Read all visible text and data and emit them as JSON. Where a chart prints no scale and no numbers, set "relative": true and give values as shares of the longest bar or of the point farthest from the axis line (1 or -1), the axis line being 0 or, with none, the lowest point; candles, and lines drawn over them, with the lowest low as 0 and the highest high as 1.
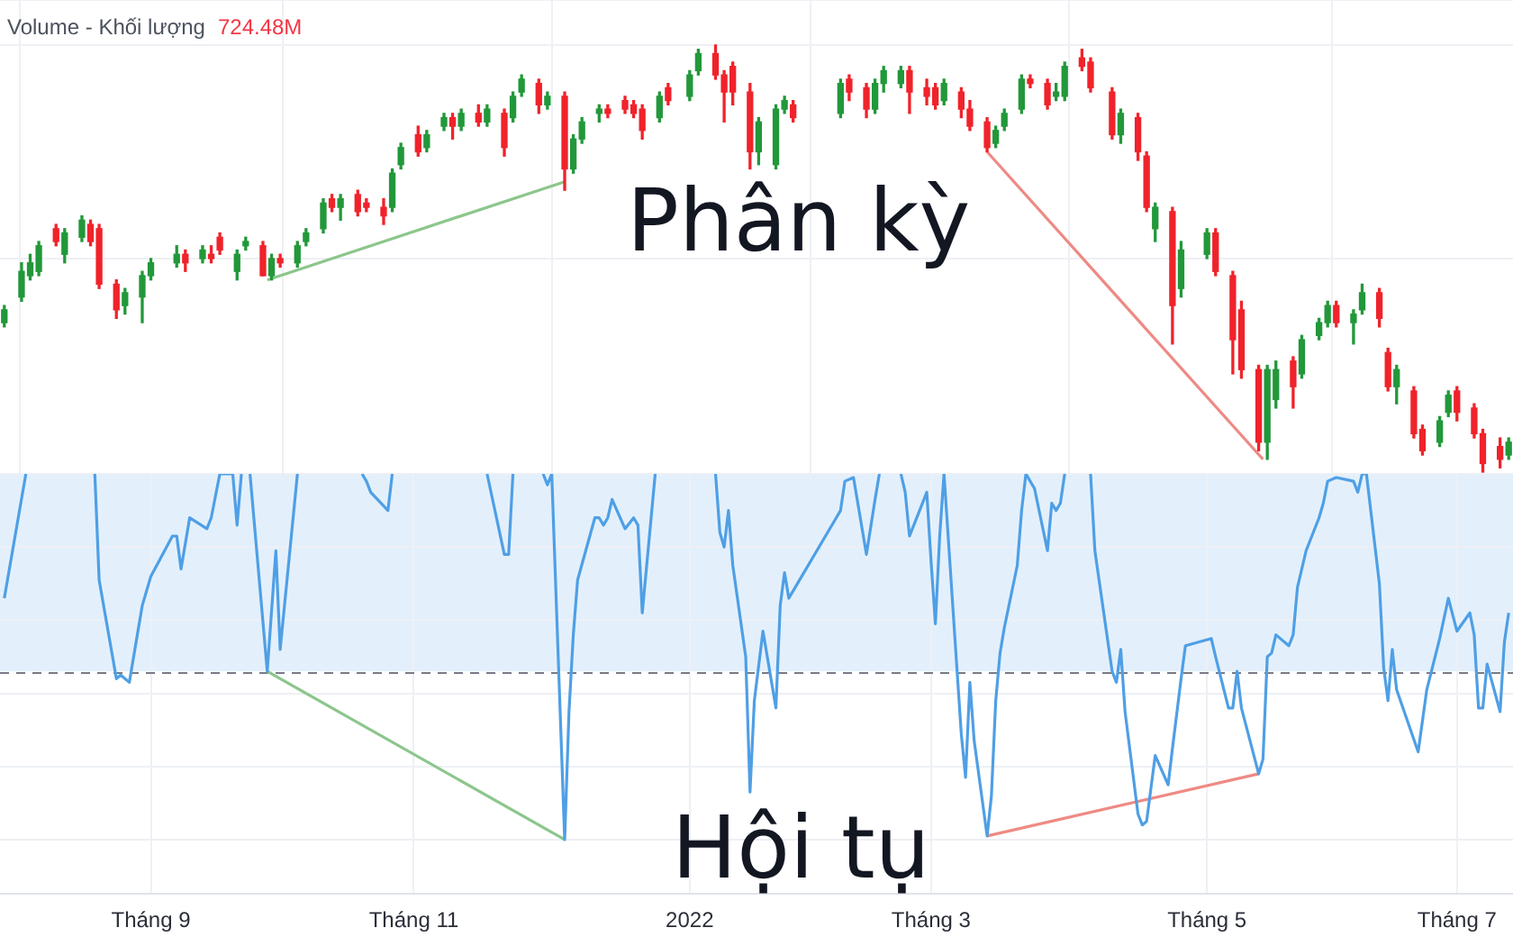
{
  "chart_data": [
    {
      "type": "candlestick",
      "relative": true,
      "x": [
        "2021-07-29",
        "2021-08-02",
        "2021-08-04",
        "2021-08-06",
        "2021-08-10",
        "2021-08-12",
        "2021-08-16",
        "2021-08-18",
        "2021-08-20",
        "2021-08-24",
        "2021-08-26",
        "2021-08-30",
        "2021-09-01",
        "2021-09-07",
        "2021-09-09",
        "2021-09-13",
        "2021-09-15",
        "2021-09-17",
        "2021-09-21",
        "2021-09-23",
        "2021-09-27",
        "2021-09-29",
        "2021-10-01",
        "2021-10-05",
        "2021-10-07",
        "2021-10-11",
        "2021-10-13",
        "2021-10-15",
        "2021-10-19",
        "2021-10-21",
        "2021-10-25",
        "2021-10-27",
        "2021-10-29",
        "2021-11-02",
        "2021-11-04",
        "2021-11-08",
        "2021-11-10",
        "2021-11-12",
        "2021-11-16",
        "2021-11-18",
        "2021-11-22",
        "2021-11-24",
        "2021-11-26",
        "2021-11-30",
        "2021-12-02",
        "2021-12-06",
        "2021-12-08",
        "2021-12-10",
        "2021-12-14",
        "2021-12-16",
        "2021-12-20",
        "2021-12-22",
        "2021-12-24",
        "2021-12-28",
        "2021-12-30",
        "2022-01-04",
        "2022-01-06",
        "2022-01-10",
        "2022-01-12",
        "2022-01-14",
        "2022-01-18",
        "2022-01-20",
        "2022-01-24",
        "2022-01-26",
        "2022-01-28",
        "2022-02-08",
        "2022-02-10",
        "2022-02-14",
        "2022-02-16",
        "2022-02-18",
        "2022-02-22",
        "2022-02-24",
        "2022-02-28",
        "2022-03-02",
        "2022-03-04",
        "2022-03-08",
        "2022-03-10",
        "2022-03-14",
        "2022-03-16",
        "2022-03-18",
        "2022-03-22",
        "2022-03-24",
        "2022-03-28",
        "2022-03-30",
        "2022-04-01",
        "2022-04-05",
        "2022-04-07",
        "2022-04-12",
        "2022-04-14",
        "2022-04-18",
        "2022-04-20",
        "2022-04-22",
        "2022-04-26",
        "2022-04-28",
        "2022-05-04",
        "2022-05-06",
        "2022-05-10",
        "2022-05-12",
        "2022-05-16",
        "2022-05-18",
        "2022-05-20",
        "2022-05-24",
        "2022-05-26",
        "2022-05-30",
        "2022-06-01",
        "2022-06-03",
        "2022-06-07",
        "2022-06-09",
        "2022-06-13",
        "2022-06-15",
        "2022-06-17",
        "2022-06-21",
        "2022-06-23",
        "2022-06-27",
        "2022-06-29",
        "2022-07-01",
        "2022-07-05",
        "2022-07-07",
        "2022-07-11",
        "2022-07-13"
      ],
      "ohlc": [
        [
          0.35,
          0.39,
          0.34,
          0.38
        ],
        [
          0.41,
          0.49,
          0.4,
          0.47
        ],
        [
          0.46,
          0.51,
          0.45,
          0.49
        ],
        [
          0.47,
          0.54,
          0.46,
          0.53
        ],
        [
          0.57,
          0.58,
          0.53,
          0.54
        ],
        [
          0.51,
          0.57,
          0.49,
          0.56
        ],
        [
          0.55,
          0.6,
          0.54,
          0.59
        ],
        [
          0.58,
          0.59,
          0.53,
          0.54
        ],
        [
          0.57,
          0.58,
          0.43,
          0.44
        ],
        [
          0.44,
          0.45,
          0.36,
          0.38
        ],
        [
          0.39,
          0.43,
          0.37,
          0.42
        ],
        [
          0.41,
          0.47,
          0.35,
          0.46
        ],
        [
          0.46,
          0.5,
          0.45,
          0.49
        ],
        [
          0.49,
          0.53,
          0.48,
          0.51
        ],
        [
          0.51,
          0.52,
          0.47,
          0.49
        ],
        [
          0.5,
          0.53,
          0.49,
          0.52
        ],
        [
          0.51,
          0.53,
          0.49,
          0.5
        ],
        [
          0.55,
          0.56,
          0.51,
          0.52
        ],
        [
          0.47,
          0.52,
          0.45,
          0.51
        ],
        [
          0.53,
          0.55,
          0.52,
          0.54
        ],
        [
          0.53,
          0.54,
          0.46,
          0.46
        ],
        [
          0.46,
          0.51,
          0.45,
          0.5
        ],
        [
          0.5,
          0.51,
          0.48,
          0.49
        ],
        [
          0.49,
          0.54,
          0.48,
          0.53
        ],
        [
          0.54,
          0.57,
          0.53,
          0.56
        ],
        [
          0.57,
          0.64,
          0.56,
          0.63
        ],
        [
          0.64,
          0.65,
          0.61,
          0.62
        ],
        [
          0.62,
          0.65,
          0.59,
          0.64
        ],
        [
          0.65,
          0.66,
          0.6,
          0.61
        ],
        [
          0.63,
          0.64,
          0.61,
          0.62
        ],
        [
          0.62,
          0.64,
          0.58,
          0.6
        ],
        [
          0.62,
          0.71,
          0.61,
          0.7
        ],
        [
          0.72,
          0.77,
          0.71,
          0.76
        ],
        [
          0.79,
          0.81,
          0.74,
          0.75
        ],
        [
          0.76,
          0.8,
          0.75,
          0.79
        ],
        [
          0.81,
          0.84,
          0.8,
          0.83
        ],
        [
          0.83,
          0.84,
          0.78,
          0.81
        ],
        [
          0.81,
          0.85,
          0.8,
          0.84
        ],
        [
          0.84,
          0.86,
          0.81,
          0.82
        ],
        [
          0.82,
          0.86,
          0.81,
          0.85
        ],
        [
          0.84,
          0.85,
          0.74,
          0.76
        ],
        [
          0.83,
          0.89,
          0.82,
          0.88
        ],
        [
          0.89,
          0.93,
          0.88,
          0.92
        ],
        [
          0.91,
          0.92,
          0.84,
          0.86
        ],
        [
          0.86,
          0.89,
          0.85,
          0.88
        ],
        [
          0.88,
          0.89,
          0.66,
          0.71
        ],
        [
          0.71,
          0.79,
          0.7,
          0.78
        ],
        [
          0.78,
          0.83,
          0.77,
          0.82
        ],
        [
          0.84,
          0.86,
          0.82,
          0.85
        ],
        [
          0.85,
          0.86,
          0.83,
          0.84
        ],
        [
          0.87,
          0.88,
          0.84,
          0.85
        ],
        [
          0.86,
          0.87,
          0.83,
          0.84
        ],
        [
          0.85,
          0.86,
          0.78,
          0.8
        ],
        [
          0.83,
          0.89,
          0.82,
          0.88
        ],
        [
          0.9,
          0.91,
          0.86,
          0.87
        ],
        [
          0.88,
          0.94,
          0.87,
          0.93
        ],
        [
          0.94,
          0.99,
          0.93,
          0.98
        ],
        [
          0.98,
          1.0,
          0.92,
          0.93
        ],
        [
          0.93,
          0.94,
          0.82,
          0.89
        ],
        [
          0.95,
          0.96,
          0.86,
          0.89
        ],
        [
          0.89,
          0.91,
          0.71,
          0.75
        ],
        [
          0.75,
          0.83,
          0.72,
          0.82
        ],
        [
          0.72,
          0.86,
          0.71,
          0.85
        ],
        [
          0.85,
          0.88,
          0.84,
          0.87
        ],
        [
          0.86,
          0.87,
          0.82,
          0.83
        ],
        [
          0.84,
          0.92,
          0.83,
          0.91
        ],
        [
          0.92,
          0.93,
          0.87,
          0.89
        ],
        [
          0.9,
          0.91,
          0.83,
          0.85
        ],
        [
          0.85,
          0.92,
          0.84,
          0.91
        ],
        [
          0.91,
          0.95,
          0.89,
          0.94
        ],
        [
          0.91,
          0.95,
          0.9,
          0.94
        ],
        [
          0.94,
          0.95,
          0.84,
          0.89
        ],
        [
          0.9,
          0.92,
          0.86,
          0.88
        ],
        [
          0.9,
          0.91,
          0.85,
          0.86
        ],
        [
          0.87,
          0.92,
          0.86,
          0.91
        ],
        [
          0.89,
          0.9,
          0.83,
          0.85
        ],
        [
          0.85,
          0.87,
          0.8,
          0.81
        ],
        [
          0.82,
          0.83,
          0.75,
          0.76
        ],
        [
          0.77,
          0.81,
          0.76,
          0.8
        ],
        [
          0.81,
          0.85,
          0.8,
          0.84
        ],
        [
          0.85,
          0.93,
          0.84,
          0.92
        ],
        [
          0.92,
          0.93,
          0.9,
          0.91
        ],
        [
          0.91,
          0.92,
          0.85,
          0.86
        ],
        [
          0.88,
          0.91,
          0.87,
          0.89
        ],
        [
          0.88,
          0.96,
          0.87,
          0.95
        ],
        [
          0.97,
          0.99,
          0.94,
          0.95
        ],
        [
          0.96,
          0.97,
          0.89,
          0.9
        ],
        [
          0.89,
          0.9,
          0.78,
          0.79
        ],
        [
          0.79,
          0.85,
          0.77,
          0.84
        ],
        [
          0.83,
          0.84,
          0.73,
          0.75
        ],
        [
          0.74,
          0.75,
          0.61,
          0.62
        ],
        [
          0.57,
          0.63,
          0.54,
          0.62
        ],
        [
          0.61,
          0.62,
          0.3,
          0.39
        ],
        [
          0.43,
          0.54,
          0.41,
          0.52
        ],
        [
          0.51,
          0.57,
          0.5,
          0.56
        ],
        [
          0.56,
          0.57,
          0.46,
          0.47
        ],
        [
          0.46,
          0.47,
          0.23,
          0.31
        ],
        [
          0.38,
          0.4,
          0.22,
          0.24
        ],
        [
          0.24,
          0.25,
          0.05,
          0.07
        ],
        [
          0.07,
          0.25,
          0.03,
          0.24
        ],
        [
          0.17,
          0.26,
          0.15,
          0.24
        ],
        [
          0.26,
          0.27,
          0.15,
          0.2
        ],
        [
          0.23,
          0.32,
          0.22,
          0.31
        ],
        [
          0.32,
          0.36,
          0.31,
          0.35
        ],
        [
          0.35,
          0.4,
          0.34,
          0.39
        ],
        [
          0.39,
          0.4,
          0.34,
          0.35
        ],
        [
          0.35,
          0.38,
          0.3,
          0.37
        ],
        [
          0.38,
          0.44,
          0.37,
          0.42
        ],
        [
          0.42,
          0.43,
          0.34,
          0.36
        ],
        [
          0.28,
          0.29,
          0.19,
          0.2
        ],
        [
          0.2,
          0.25,
          0.16,
          0.24
        ],
        [
          0.19,
          0.2,
          0.08,
          0.09
        ],
        [
          0.1,
          0.11,
          0.04,
          0.05
        ],
        [
          0.07,
          0.13,
          0.06,
          0.12
        ],
        [
          0.14,
          0.19,
          0.13,
          0.18
        ],
        [
          0.19,
          0.2,
          0.12,
          0.14
        ],
        [
          0.15,
          0.16,
          0.08,
          0.09
        ],
        [
          0.09,
          0.1,
          0,
          0.02
        ],
        [
          0.06,
          0.08,
          0.01,
          0.03
        ],
        [
          0.04,
          0.08,
          0.03,
          0.07
        ]
      ],
      "colors": [
        "#22983a",
        "#22983a",
        "#22983a",
        "#22983a",
        "#f0232b",
        "#22983a",
        "#22983a",
        "#f0232b",
        "#f0232b",
        "#f0232b",
        "#22983a",
        "#22983a",
        "#22983a",
        "#22983a",
        "#f0232b",
        "#22983a",
        "#f0232b",
        "#f0232b",
        "#22983a",
        "#22983a",
        "#f0232b",
        "#22983a",
        "#f0232b",
        "#22983a",
        "#22983a",
        "#22983a",
        "#f0232b",
        "#22983a",
        "#f0232b",
        "#f0232b",
        "#f0232b",
        "#22983a",
        "#22983a",
        "#f0232b",
        "#22983a",
        "#22983a",
        "#f0232b",
        "#22983a",
        "#f0232b",
        "#22983a",
        "#f0232b",
        "#22983a",
        "#22983a",
        "#f0232b",
        "#22983a",
        "#f0232b",
        "#22983a",
        "#22983a",
        "#22983a",
        "#f0232b",
        "#f0232b",
        "#f0232b",
        "#f0232b",
        "#22983a",
        "#f0232b",
        "#22983a",
        "#22983a",
        "#f0232b",
        "#f0232b",
        "#f0232b",
        "#f0232b",
        "#22983a",
        "#22983a",
        "#22983a",
        "#f0232b",
        "#22983a",
        "#f0232b",
        "#f0232b",
        "#22983a",
        "#22983a",
        "#22983a",
        "#f0232b",
        "#f0232b",
        "#f0232b",
        "#22983a",
        "#f0232b",
        "#f0232b",
        "#f0232b",
        "#22983a",
        "#22983a",
        "#22983a",
        "#f0232b",
        "#f0232b",
        "#22983a",
        "#22983a",
        "#f0232b",
        "#f0232b",
        "#f0232b",
        "#22983a",
        "#f0232b",
        "#f0232b",
        "#22983a",
        "#f0232b",
        "#22983a",
        "#22983a",
        "#f0232b",
        "#f0232b",
        "#f0232b",
        "#f0232b",
        "#22983a",
        "#22983a",
        "#f0232b",
        "#22983a",
        "#22983a",
        "#22983a",
        "#f0232b",
        "#22983a",
        "#22983a",
        "#f0232b",
        "#f0232b",
        "#22983a",
        "#f0232b",
        "#f0232b",
        "#22983a",
        "#22983a",
        "#f0232b",
        "#f0232b",
        "#f0232b",
        "#f0232b",
        "#22983a"
      ],
      "series": [
        {
          "type": "line",
          "x": [
            "2021-09-28",
            "2021-12-06"
          ],
          "values": [
            0.45,
            0.68
          ],
          "color": "#8cc68c"
        },
        {
          "type": "line",
          "x": [
            "2022-03-14",
            "2022-05-17"
          ],
          "values": [
            0.75,
            0.03
          ],
          "color": "#ee8a84"
        }
      ],
      "xlim": [
        "2021-07-28",
        "2022-07-14"
      ],
      "xticks": [
        {
          "value": "2021-09-01",
          "label": null
        },
        {
          "value": "2021-11-01",
          "label": null
        },
        {
          "value": "2022-01-04",
          "label": null
        },
        {
          "value": "2022-03-01",
          "label": null
        },
        {
          "value": "2022-05-04",
          "label": null
        },
        {
          "value": "2022-07-01",
          "label": null
        }
      ],
      "tick_labels": false,
      "grid": true,
      "annotations": [
        "Volume - Khối lượng",
        "724.48M",
        "Phân kỳ"
      ]
    },
    {
      "type": "line",
      "relative": true,
      "series": [
        {
          "x": [
            "2021-07-29",
            "2021-08-03",
            "2021-08-10",
            "2021-08-19",
            "2021-08-20",
            "2021-08-24",
            "2021-08-25",
            "2021-08-26",
            "2021-08-27",
            "2021-08-30",
            "2021-08-31",
            "2021-09-01",
            "2021-09-06",
            "2021-09-07",
            "2021-09-08",
            "2021-09-10",
            "2021-09-14",
            "2021-09-15",
            "2021-09-17",
            "2021-09-20",
            "2021-09-21",
            "2021-09-22",
            "2021-09-23",
            "2021-09-24",
            "2021-09-28",
            "2021-09-30",
            "2021-10-01",
            "2021-10-05",
            "2021-10-15",
            "2021-10-20",
            "2021-10-21",
            "2021-10-22",
            "2021-10-26",
            "2021-10-27",
            "2021-11-08",
            "2021-11-18",
            "2021-11-22",
            "2021-11-23",
            "2021-11-24",
            "2021-11-26",
            "2021-12-01",
            "2021-12-02",
            "2021-12-03",
            "2021-12-06",
            "2021-12-07",
            "2021-12-08",
            "2021-12-09",
            "2021-12-13",
            "2021-12-14",
            "2021-12-15",
            "2021-12-16",
            "2021-12-17",
            "2021-12-20",
            "2021-12-22",
            "2021-12-23",
            "2021-12-24",
            "2021-12-27",
            "2022-01-04",
            "2022-01-10",
            "2022-01-11",
            "2022-01-12",
            "2022-01-13",
            "2022-01-14",
            "2022-01-17",
            "2022-01-18",
            "2022-01-19",
            "2022-01-21",
            "2022-01-24",
            "2022-01-25",
            "2022-01-26",
            "2022-01-27",
            "2022-01-28",
            "2022-02-07",
            "2022-02-08",
            "2022-02-09",
            "2022-02-11",
            "2022-02-14",
            "2022-02-16",
            "2022-02-17",
            "2022-02-21",
            "2022-02-22",
            "2022-02-23",
            "2022-02-24",
            "2022-02-28",
            "2022-03-01",
            "2022-03-02",
            "2022-03-03",
            "2022-03-04",
            "2022-03-08",
            "2022-03-09",
            "2022-03-10",
            "2022-03-11",
            "2022-03-14",
            "2022-03-15",
            "2022-03-16",
            "2022-03-17",
            "2022-03-18",
            "2022-03-21",
            "2022-03-22",
            "2022-03-23",
            "2022-03-24",
            "2022-03-25",
            "2022-03-28",
            "2022-03-29",
            "2022-03-30",
            "2022-03-31",
            "2022-04-01",
            "2022-04-05",
            "2022-04-07",
            "2022-04-08",
            "2022-04-12",
            "2022-04-13",
            "2022-04-14",
            "2022-04-15",
            "2022-04-18",
            "2022-04-19",
            "2022-04-20",
            "2022-04-22",
            "2022-04-25",
            "2022-04-26",
            "2022-04-28",
            "2022-04-29",
            "2022-05-05",
            "2022-05-06",
            "2022-05-09",
            "2022-05-10",
            "2022-05-11",
            "2022-05-12",
            "2022-05-16",
            "2022-05-17",
            "2022-05-18",
            "2022-05-19",
            "2022-05-20",
            "2022-05-23",
            "2022-05-24",
            "2022-05-25",
            "2022-05-27",
            "2022-05-30",
            "2022-05-31",
            "2022-06-01",
            "2022-06-03",
            "2022-06-07",
            "2022-06-08",
            "2022-06-09",
            "2022-06-10",
            "2022-06-13",
            "2022-06-14",
            "2022-06-15",
            "2022-06-16",
            "2022-06-17",
            "2022-06-22",
            "2022-06-24",
            "2022-06-27",
            "2022-06-29",
            "2022-07-01",
            "2022-07-04",
            "2022-07-05",
            "2022-07-06",
            "2022-07-07",
            "2022-07-08",
            "2022-07-11",
            "2022-07-12",
            "2022-07-13"
          ],
          "values": [
            0.66,
            1,
            null,
            1,
            0.71,
            0.44,
            0.45,
            0.44,
            0.43,
            0.64,
            0.68,
            0.72,
            0.83,
            0.83,
            0.74,
            0.88,
            0.85,
            0.88,
            1,
            1,
            0.86,
            1,
            null,
            1,
            0.46,
            0.79,
            0.52,
            1,
            null,
            1,
            0.98,
            0.95,
            0.9,
            1,
            null,
            1,
            0.78,
            0.78,
            1,
            null,
            1,
            0.97,
            1,
            0,
            0.35,
            0.56,
            0.71,
            0.88,
            0.88,
            0.86,
            0.88,
            0.93,
            0.85,
            0.88,
            0.86,
            0.62,
            1,
            null,
            1,
            0.84,
            0.8,
            0.9,
            0.75,
            0.5,
            0.13,
            0.38,
            0.57,
            0.36,
            0.64,
            0.73,
            0.66,
            0.68,
            0.88,
            0.9,
            0.98,
            0.99,
            0.78,
            0.93,
            1,
            null,
            1,
            0.95,
            0.83,
            0.95,
            0.76,
            0.59,
            0.83,
            1,
            0.29,
            0.17,
            0.43,
            0.27,
            0.01,
            0.12,
            0.38,
            0.51,
            0.58,
            0.75,
            0.9,
            1,
            0.98,
            0.96,
            0.79,
            0.92,
            0.9,
            0.92,
            1,
            null,
            1,
            0.79,
            0.46,
            0.43,
            0.52,
            0.35,
            0.07,
            0.04,
            0.05,
            0.23,
            0.15,
            0.25,
            0.44,
            0.53,
            0.55,
            0.5,
            0.36,
            0.36,
            0.46,
            0.36,
            0.18,
            0.22,
            0.5,
            0.51,
            0.56,
            0.53,
            0.56,
            0.69,
            0.79,
            0.88,
            0.92,
            0.98,
            0.99,
            0.98,
            0.95,
            1,
            1,
            0.7,
            0.47,
            0.38,
            0.52,
            0.41,
            0.24,
            0.41,
            0.55,
            0.66,
            0.57,
            0.62,
            0.56,
            0.36,
            0.36,
            0.48,
            0.35,
            0.54,
            0.62
          ],
          "color": "#4f9fe5"
        },
        {
          "x": [
            "2021-09-28",
            "2021-12-06"
          ],
          "values": [
            0.46,
            0
          ],
          "color": "#8cc68c"
        },
        {
          "x": [
            "2022-03-14",
            "2022-05-16"
          ],
          "values": [
            0.01,
            0.18
          ],
          "color": "#ee8a84"
        }
      ],
      "xlim": [
        "2021-07-28",
        "2022-07-14"
      ],
      "xticks": [
        {
          "value": "2021-09-01",
          "label": "Tháng 9"
        },
        {
          "value": "2021-11-01",
          "label": "Tháng 11"
        },
        {
          "value": "2022-01-04",
          "label": "2022"
        },
        {
          "value": "2022-03-01",
          "label": "Tháng 3"
        },
        {
          "value": "2022-05-04",
          "label": "Tháng 5"
        },
        {
          "value": "2022-07-01",
          "label": "Tháng 7"
        }
      ],
      "tick_labels": "x",
      "grid": true,
      "bands": [
        {
          "axis": "y",
          "from": 0.46,
          "to": 1,
          "color": "#e3f0fc"
        }
      ],
      "ref_lines": [
        {
          "axis": "y",
          "value": 0.46,
          "color": "#787b86",
          "line_style": "dashed"
        }
      ],
      "annotations": [
        "Hội tụ"
      ]
    }
  ]
}
